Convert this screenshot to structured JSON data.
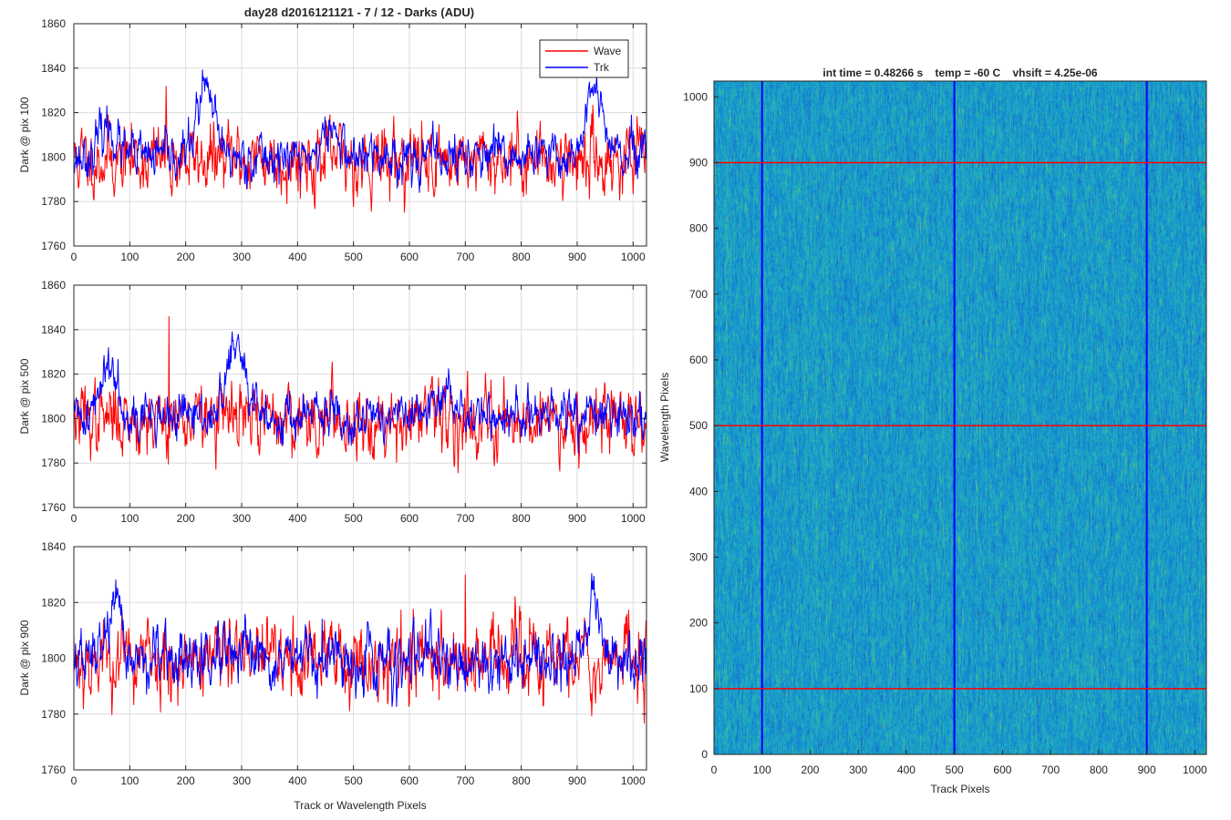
{
  "figure_title": "day28 d2016121121 - 7 / 12 - Darks (ADU)",
  "colors": {
    "wave": "#ff0000",
    "trk": "#0000ff",
    "grid": "#dcdcdc",
    "axis": "#262626"
  },
  "chart_data": [
    {
      "type": "line",
      "title": "day28 d2016121121 - 7 / 12 - Darks (ADU)",
      "ylabel": "Dark @ pix 100",
      "xlabel": "",
      "xlim": [
        0,
        1024
      ],
      "ylim": [
        1760,
        1860
      ],
      "xticks": [
        0,
        100,
        200,
        300,
        400,
        500,
        600,
        700,
        800,
        900,
        1000
      ],
      "yticks": [
        1760,
        1780,
        1800,
        1820,
        1840,
        1860
      ],
      "grid": true,
      "legend": "top-right",
      "series": [
        {
          "name": "Wave",
          "color": "#ff0000",
          "baseline": 1799,
          "noise": 12,
          "spike": 1832,
          "spike_at": 165,
          "seed": 11
        },
        {
          "name": "Trk",
          "color": "#0000ff",
          "baseline": 1800,
          "noise": 8,
          "bumps": [
            [
              60,
              1813
            ],
            [
              235,
              1830
            ],
            [
              460,
              1812
            ],
            [
              930,
              1830
            ]
          ],
          "seed": 23
        }
      ]
    },
    {
      "type": "line",
      "ylabel": "Dark @ pix 500",
      "xlabel": "",
      "xlim": [
        0,
        1024
      ],
      "ylim": [
        1760,
        1860
      ],
      "xticks": [
        0,
        100,
        200,
        300,
        400,
        500,
        600,
        700,
        800,
        900,
        1000
      ],
      "yticks": [
        1760,
        1780,
        1800,
        1820,
        1840,
        1860
      ],
      "grid": true,
      "series": [
        {
          "name": "Wave",
          "color": "#ff0000",
          "baseline": 1800,
          "noise": 12,
          "spike": 1846,
          "spike_at": 170,
          "seed": 37
        },
        {
          "name": "Trk",
          "color": "#0000ff",
          "baseline": 1801,
          "noise": 8,
          "bumps": [
            [
              65,
              1825
            ],
            [
              290,
              1833
            ],
            [
              670,
              1812
            ]
          ],
          "seed": 41
        }
      ]
    },
    {
      "type": "line",
      "ylabel": "Dark @ pix 900",
      "xlabel": "Track or Wavelength Pixels",
      "xlim": [
        0,
        1024
      ],
      "ylim": [
        1760,
        1840
      ],
      "xticks": [
        0,
        100,
        200,
        300,
        400,
        500,
        600,
        700,
        800,
        900,
        1000
      ],
      "yticks": [
        1760,
        1780,
        1800,
        1820,
        1840
      ],
      "grid": true,
      "series": [
        {
          "name": "Wave",
          "color": "#ff0000",
          "baseline": 1800,
          "noise": 11,
          "spike": 1830,
          "spike_at": 700,
          "seed": 53
        },
        {
          "name": "Trk",
          "color": "#0000ff",
          "baseline": 1799,
          "noise": 8,
          "bumps": [
            [
              70,
              1815
            ],
            [
              930,
              1818
            ]
          ],
          "seed": 67
        }
      ]
    },
    {
      "type": "heatmap",
      "title": "int time = 0.48266 s    temp = -60 C    vhsift = 4.25e-06",
      "xlabel": "Track Pixels",
      "ylabel": "Wavelength Pixels",
      "xlim": [
        0,
        1024
      ],
      "ylim": [
        0,
        1024
      ],
      "xticks": [
        0,
        100,
        200,
        300,
        400,
        500,
        600,
        700,
        800,
        900,
        1000
      ],
      "yticks": [
        0,
        100,
        200,
        300,
        400,
        500,
        600,
        700,
        800,
        900,
        1000
      ],
      "colormap": "parula",
      "vertical_lines": [
        100,
        500,
        900
      ],
      "vertical_line_color": "#0000ff",
      "horizontal_lines": [
        100,
        500,
        900
      ],
      "horizontal_line_color": "#ff0000"
    }
  ]
}
